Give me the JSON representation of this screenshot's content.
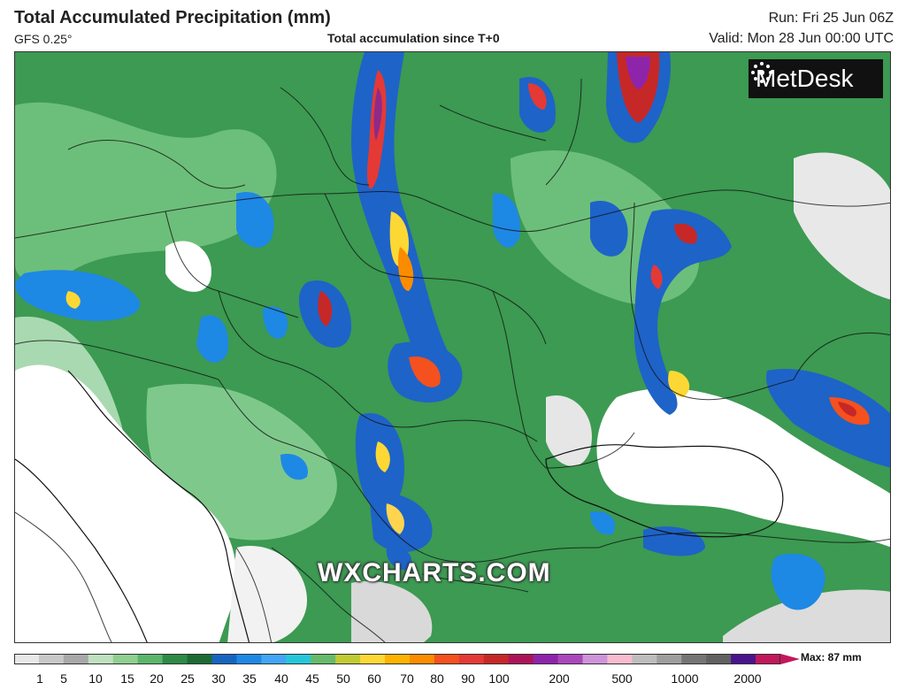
{
  "header": {
    "title": "Total Accumulated Precipitation (mm)",
    "model": "GFS 0.25°",
    "subtitle": "Total accumulation since T+0",
    "run": "Run: Fri 25 Jun 06Z",
    "valid": "Valid: Mon 28 Jun 00:00 UTC"
  },
  "logo": {
    "text": "MetDesk",
    "icon": "burst-icon"
  },
  "watermark": "WXCHARTS.COM",
  "colorbar": {
    "max_label": "Max: 87 mm",
    "ticks": [
      "1",
      "5",
      "10",
      "15",
      "20",
      "25",
      "30",
      "35",
      "40",
      "45",
      "50",
      "60",
      "70",
      "80",
      "90",
      "100",
      "200",
      "500",
      "1000",
      "2000"
    ],
    "colors": [
      "#e8e8e8",
      "#c8c8c8",
      "#a8a8a8",
      "#bfe0bf",
      "#8fcf8f",
      "#5bb56b",
      "#2f8a45",
      "#1d6a33",
      "#1565c0",
      "#1e88e5",
      "#42a5f5",
      "#26c6da",
      "#66bb6a",
      "#c0ca33",
      "#fdd835",
      "#ffb300",
      "#fb8c00",
      "#f4511e",
      "#e53935",
      "#c62828",
      "#ad1457",
      "#8e24aa",
      "#ab47bc",
      "#ce93d8",
      "#f8bbd0",
      "#bdbdbd",
      "#9e9e9e",
      "#757575",
      "#616161",
      "#4a148c",
      "#c2185b"
    ]
  }
}
